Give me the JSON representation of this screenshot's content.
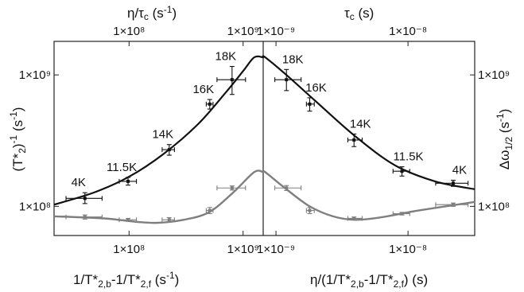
{
  "colors": {
    "black": "#111111",
    "gray": "#7f7f7f",
    "axis": "#222222"
  },
  "top_axis_labels": {
    "left": "η/τc (s⁻¹)",
    "right": "τc (s)"
  },
  "bottom_axis_labels": {
    "left": "1/T*2,b-1/T*2,f (s⁻¹)",
    "right": "η/(1/T*2,b-1/T*2,f) (s)"
  },
  "y_axis_labels": {
    "left": "(T*2)⁻¹ (s⁻¹)",
    "right": "Δω1/2 (s⁻¹)"
  },
  "chart_data": {
    "type": "scatter",
    "panels": [
      {
        "side": "left",
        "x_scale": "log",
        "y_scale": "log",
        "xlim": [
          22000000.0,
          1500000000.0
        ],
        "ylim": [
          60000000.0,
          1800000000.0
        ],
        "bottom_ticks": [
          {
            "value": 100000000.0,
            "label": "1×10⁸"
          },
          {
            "value": 1000000000.0,
            "label": "1×10⁹"
          }
        ],
        "top_ticks": [
          {
            "value": 100000000.0,
            "label": "1×10⁸"
          },
          {
            "value": 1000000000.0,
            "label": "1×10⁹"
          }
        ],
        "y_ticks": [
          {
            "value": 100000000.0,
            "label": "1×10⁸"
          },
          {
            "value": 1000000000.0,
            "label": "1×10⁹"
          }
        ],
        "series": [
          {
            "color": "black",
            "points": [
              {
                "x": 41000000.0,
                "y": 115000000.0,
                "xerr": [
                  28000000.0,
                  58000000.0
                ],
                "yerr": [
                  105000000.0,
                  127000000.0
                ],
                "label": "4K"
              },
              {
                "x": 98000000.0,
                "y": 155000000.0,
                "xerr": [
                  82000000.0,
                  116000000.0
                ],
                "yerr": [
                  145000000.0,
                  166000000.0
                ],
                "label": "11.5K"
              },
              {
                "x": 225000000.0,
                "y": 270000000.0,
                "xerr": [
                  195000000.0,
                  250000000.0
                ],
                "yerr": [
                  245000000.0,
                  295000000.0
                ],
                "label": "14K"
              },
              {
                "x": 510000000.0,
                "y": 600000000.0,
                "xerr": [
                  475000000.0,
                  545000000.0
                ],
                "yerr": [
                  550000000.0,
                  650000000.0
                ],
                "label": "16K"
              },
              {
                "x": 800000000.0,
                "y": 920000000.0,
                "xerr": [
                  590000000.0,
                  1050000000.0
                ],
                "yerr": [
                  710000000.0,
                  1160000000.0
                ],
                "label": "18K"
              }
            ]
          },
          {
            "color": "gray",
            "points": [
              {
                "x": 41000000.0,
                "y": 83000000.0,
                "xerr": [
                  28000000.0,
                  58000000.0
                ],
                "yerr": [
                  80000000.0,
                  86000000.0
                ]
              },
              {
                "x": 98000000.0,
                "y": 79000000.0,
                "xerr": [
                  82000000.0,
                  116000000.0
                ],
                "yerr": [
                  77000000.0,
                  81000000.0
                ]
              },
              {
                "x": 225000000.0,
                "y": 79000000.0,
                "xerr": [
                  195000000.0,
                  250000000.0
                ],
                "yerr": [
                  76000000.0,
                  82000000.0
                ]
              },
              {
                "x": 510000000.0,
                "y": 93000000.0,
                "xerr": [
                  475000000.0,
                  545000000.0
                ],
                "yerr": [
                  88000000.0,
                  98000000.0
                ]
              },
              {
                "x": 800000000.0,
                "y": 138000000.0,
                "xerr": [
                  590000000.0,
                  1050000000.0
                ],
                "yerr": [
                  133000000.0,
                  143000000.0
                ]
              }
            ]
          }
        ]
      },
      {
        "side": "right",
        "x_scale": "log",
        "y_scale": "log",
        "xlim": [
          8e-10,
          3.2e-08
        ],
        "ylim": [
          60000000.0,
          1800000000.0
        ],
        "bottom_ticks": [
          {
            "value": 1e-09,
            "label": "1×10⁻⁹"
          },
          {
            "value": 1e-08,
            "label": "1×10⁻⁸"
          }
        ],
        "top_ticks": [
          {
            "value": 1e-09,
            "label": "1×10⁻⁹"
          },
          {
            "value": 1e-08,
            "label": "1×10⁻⁸"
          }
        ],
        "y_ticks": [
          {
            "value": 100000000.0,
            "label": "1×10⁸"
          },
          {
            "value": 1000000000.0,
            "label": "1×10⁹"
          }
        ],
        "series": [
          {
            "color": "black",
            "points": [
              {
                "x": 1.2e-09,
                "y": 920000000.0,
                "xerr": [
                  9.8e-10,
                  1.55e-09
                ],
                "yerr": [
                  760000000.0,
                  1100000000.0
                ],
                "label": "18K"
              },
              {
                "x": 1.8e-09,
                "y": 600000000.0,
                "xerr": [
                  1.7e-09,
                  1.95e-09
                ],
                "yerr": [
                  530000000.0,
                  670000000.0
                ],
                "label": "16K"
              },
              {
                "x": 3.9e-09,
                "y": 320000000.0,
                "xerr": [
                  3.5e-09,
                  4.5e-09
                ],
                "yerr": [
                  285000000.0,
                  355000000.0
                ],
                "label": "14K"
              },
              {
                "x": 9e-09,
                "y": 185000000.0,
                "xerr": [
                  7.7e-09,
                  1.03e-08
                ],
                "yerr": [
                  170000000.0,
                  200000000.0
                ],
                "label": "11.5K"
              },
              {
                "x": 2.2e-08,
                "y": 150000000.0,
                "xerr": [
                  1.62e-08,
                  2.85e-08
                ],
                "yerr": [
                  142000000.0,
                  158000000.0
                ],
                "label": "4K"
              }
            ]
          },
          {
            "color": "gray",
            "points": [
              {
                "x": 1.2e-09,
                "y": 138000000.0,
                "xerr": [
                  9.8e-10,
                  1.55e-09
                ],
                "yerr": [
                  132000000.0,
                  144000000.0
                ]
              },
              {
                "x": 1.8e-09,
                "y": 93000000.0,
                "xerr": [
                  1.7e-09,
                  1.95e-09
                ],
                "yerr": [
                  88000000.0,
                  98000000.0
                ]
              },
              {
                "x": 3.9e-09,
                "y": 81000000.0,
                "xerr": [
                  3.5e-09,
                  4.5e-09
                ],
                "yerr": [
                  79000000.0,
                  83000000.0
                ]
              },
              {
                "x": 9e-09,
                "y": 88000000.0,
                "xerr": [
                  7.7e-09,
                  1.03e-08
                ],
                "yerr": [
                  86000000.0,
                  90000000.0
                ]
              },
              {
                "x": 2.2e-08,
                "y": 103000000.0,
                "xerr": [
                  1.62e-08,
                  2.85e-08
                ],
                "yerr": [
                  100000000.0,
                  106000000.0
                ]
              }
            ]
          }
        ]
      }
    ],
    "fit_curves": [
      {
        "color": "black",
        "left": [
          [
            22000000.0,
            103000000.0
          ],
          [
            50000000.0,
            128000000.0
          ],
          [
            100000000.0,
            168000000.0
          ],
          [
            200000000.0,
            250000000.0
          ],
          [
            400000000.0,
            420000000.0
          ],
          [
            700000000.0,
            730000000.0
          ],
          [
            1000000000.0,
            1070000000.0
          ],
          [
            1250000000.0,
            1360000000.0
          ]
        ],
        "right": [
          [
            8.3e-10,
            1360000000.0
          ],
          [
            1.2e-09,
            1000000000.0
          ],
          [
            2e-09,
            630000000.0
          ],
          [
            4e-09,
            340000000.0
          ],
          [
            8e-09,
            205000000.0
          ],
          [
            1.6e-08,
            155000000.0
          ],
          [
            3.2e-08,
            135000000.0
          ]
        ]
      },
      {
        "color": "gray",
        "left": [
          [
            22000000.0,
            84000000.0
          ],
          [
            60000000.0,
            81000000.0
          ],
          [
            120000000.0,
            76000000.0
          ],
          [
            180000000.0,
            75000000.0
          ],
          [
            300000000.0,
            79000000.0
          ],
          [
            500000000.0,
            90000000.0
          ],
          [
            800000000.0,
            125000000.0
          ],
          [
            1250000000.0,
            182000000.0
          ]
        ],
        "right": [
          [
            8.3e-10,
            182000000.0
          ],
          [
            1.2e-09,
            135000000.0
          ],
          [
            1.8e-09,
            100000000.0
          ],
          [
            2.7e-09,
            84000000.0
          ],
          [
            4e-09,
            79000000.0
          ],
          [
            6.5e-09,
            83000000.0
          ],
          [
            1.2e-08,
            93000000.0
          ],
          [
            3.2e-08,
            108000000.0
          ]
        ]
      }
    ]
  }
}
